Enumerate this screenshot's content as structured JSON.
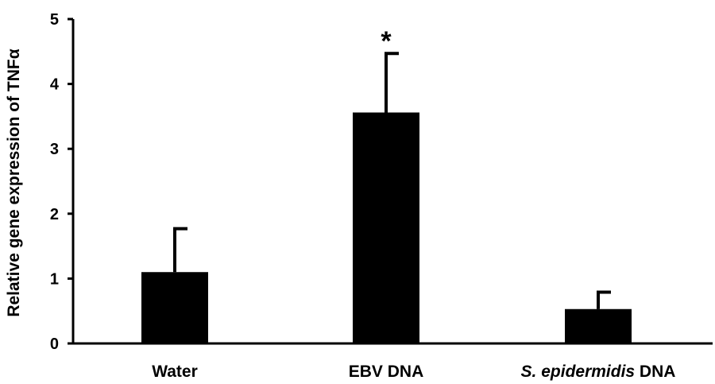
{
  "chart_data": {
    "type": "bar",
    "title": "",
    "xlabel": "",
    "ylabel": "Relative gene expression of TNFα",
    "ylim": [
      0,
      5
    ],
    "yticks": [
      "0",
      "1",
      "2",
      "3",
      "4",
      "5"
    ],
    "categories": [
      "Water",
      "EBV DNA",
      "S. epidermidis DNA"
    ],
    "category_parts": [
      [
        {
          "text": "Water",
          "italic": false
        }
      ],
      [
        {
          "text": "EBV DNA",
          "italic": false
        }
      ],
      [
        {
          "text": "S. epidermidis",
          "italic": true
        },
        {
          "text": " DNA",
          "italic": false
        }
      ]
    ],
    "values": [
      1.1,
      3.56,
      0.53
    ],
    "error_upper": [
      0.67,
      0.91,
      0.26
    ],
    "annotations": [
      "",
      "*",
      ""
    ],
    "bar_color": "#000000",
    "grid": false,
    "legend": "none"
  }
}
